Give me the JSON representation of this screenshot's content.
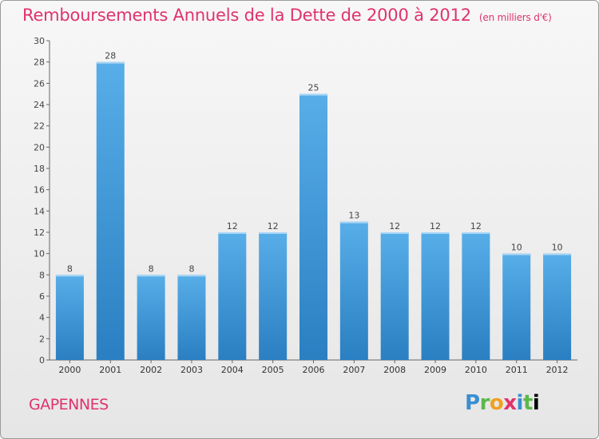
{
  "chart_data": {
    "type": "bar",
    "title": "Remboursements Annuels de la Dette de 2000 à 2012",
    "unit": "(en milliers d'€)",
    "categories": [
      "2000",
      "2001",
      "2002",
      "2003",
      "2004",
      "2005",
      "2006",
      "2007",
      "2008",
      "2009",
      "2010",
      "2011",
      "2012"
    ],
    "values": [
      8,
      28,
      8,
      8,
      12,
      12,
      25,
      13,
      12,
      12,
      12,
      10,
      10
    ],
    "ylim": [
      0,
      30
    ],
    "yticks": [
      0,
      2,
      4,
      6,
      8,
      10,
      12,
      14,
      16,
      18,
      20,
      22,
      24,
      26,
      28,
      30
    ],
    "grid": false,
    "bar_color": "#3b96d8"
  },
  "commune": "GAPENNES",
  "logo": {
    "letters": [
      "P",
      "r",
      "o",
      "x",
      "i",
      "t",
      "i"
    ]
  }
}
